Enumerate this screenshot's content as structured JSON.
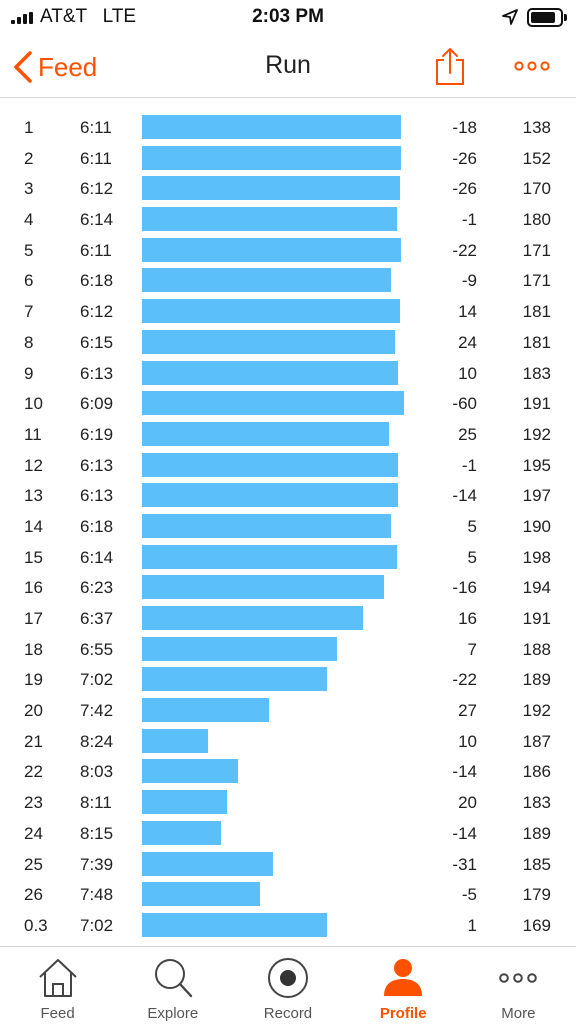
{
  "status_bar": {
    "carrier": "AT&T   LTE",
    "time": "2:03 PM",
    "battery_level": 0.85
  },
  "nav": {
    "back_label": "Feed",
    "title": "Run",
    "accent_color": "#fc5200"
  },
  "splits": {
    "bar_color": "#5bbff9",
    "rows": [
      {
        "label": "1",
        "pace": "6:11",
        "elev": "-18",
        "hr": "138"
      },
      {
        "label": "2",
        "pace": "6:11",
        "elev": "-26",
        "hr": "152"
      },
      {
        "label": "3",
        "pace": "6:12",
        "elev": "-26",
        "hr": "170"
      },
      {
        "label": "4",
        "pace": "6:14",
        "elev": "-1",
        "hr": "180"
      },
      {
        "label": "5",
        "pace": "6:11",
        "elev": "-22",
        "hr": "171"
      },
      {
        "label": "6",
        "pace": "6:18",
        "elev": "-9",
        "hr": "171"
      },
      {
        "label": "7",
        "pace": "6:12",
        "elev": "14",
        "hr": "181"
      },
      {
        "label": "8",
        "pace": "6:15",
        "elev": "24",
        "hr": "181"
      },
      {
        "label": "9",
        "pace": "6:13",
        "elev": "10",
        "hr": "183"
      },
      {
        "label": "10",
        "pace": "6:09",
        "elev": "-60",
        "hr": "191"
      },
      {
        "label": "11",
        "pace": "6:19",
        "elev": "25",
        "hr": "192"
      },
      {
        "label": "12",
        "pace": "6:13",
        "elev": "-1",
        "hr": "195"
      },
      {
        "label": "13",
        "pace": "6:13",
        "elev": "-14",
        "hr": "197"
      },
      {
        "label": "14",
        "pace": "6:18",
        "elev": "5",
        "hr": "190"
      },
      {
        "label": "15",
        "pace": "6:14",
        "elev": "5",
        "hr": "198"
      },
      {
        "label": "16",
        "pace": "6:23",
        "elev": "-16",
        "hr": "194"
      },
      {
        "label": "17",
        "pace": "6:37",
        "elev": "16",
        "hr": "191"
      },
      {
        "label": "18",
        "pace": "6:55",
        "elev": "7",
        "hr": "188"
      },
      {
        "label": "19",
        "pace": "7:02",
        "elev": "-22",
        "hr": "189"
      },
      {
        "label": "20",
        "pace": "7:42",
        "elev": "27",
        "hr": "192"
      },
      {
        "label": "21",
        "pace": "8:24",
        "elev": "10",
        "hr": "187"
      },
      {
        "label": "22",
        "pace": "8:03",
        "elev": "-14",
        "hr": "186"
      },
      {
        "label": "23",
        "pace": "8:11",
        "elev": "20",
        "hr": "183"
      },
      {
        "label": "24",
        "pace": "8:15",
        "elev": "-14",
        "hr": "189"
      },
      {
        "label": "25",
        "pace": "7:39",
        "elev": "-31",
        "hr": "185"
      },
      {
        "label": "26",
        "pace": "7:48",
        "elev": "-5",
        "hr": "179"
      },
      {
        "label": "0.3",
        "pace": "7:02",
        "elev": "1",
        "hr": "169"
      }
    ]
  },
  "tab_bar": {
    "tabs": [
      {
        "label": "Feed",
        "icon": "home-icon"
      },
      {
        "label": "Explore",
        "icon": "search-icon"
      },
      {
        "label": "Record",
        "icon": "record-icon"
      },
      {
        "label": "Profile",
        "icon": "profile-icon",
        "active": true
      },
      {
        "label": "More",
        "icon": "more-dots-icon"
      }
    ]
  }
}
